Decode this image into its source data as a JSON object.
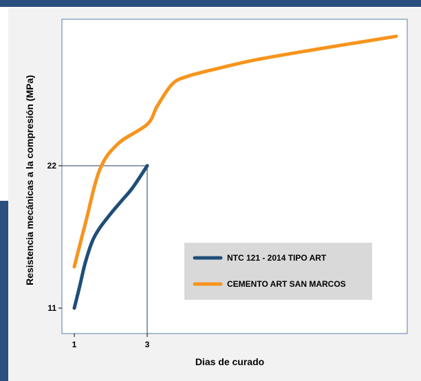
{
  "chart_data": {
    "type": "line",
    "title": "",
    "xlabel": "Dias de curado",
    "ylabel": "Resistencia mecánicas a la compresión (MPa)",
    "xlim": [
      0,
      28.5
    ],
    "ylim": [
      9.2,
      32.3
    ],
    "x_ticks": [
      1,
      3
    ],
    "y_ticks": [
      11,
      22
    ],
    "grid": false,
    "legend_position": "lower-right",
    "reference_lines": [
      {
        "x": 3,
        "y": 22
      }
    ],
    "series": [
      {
        "name": "NTC 121 - 2014 TIPO ART",
        "color": "#1f4e79",
        "x": [
          1,
          1.15,
          1.3,
          1.5,
          1.7,
          2.0,
          2.3,
          2.6,
          3.0
        ],
        "y": [
          11.0,
          12.7,
          14.5,
          16.2,
          17.2,
          18.3,
          19.3,
          20.3,
          22.0
        ]
      },
      {
        "name": "CEMENTO ART SAN MARCOS",
        "color": "#f7941d",
        "x": [
          1,
          1.3,
          1.7,
          2.2,
          3.0,
          4.0,
          5.5,
          7.0,
          10.0,
          14.0,
          20.0,
          28.0
        ],
        "y": [
          14.2,
          17.5,
          21.7,
          23.7,
          25.2,
          26.6,
          28.3,
          28.9,
          29.5,
          30.2,
          31.0,
          32.0
        ]
      }
    ]
  },
  "colors": {
    "frame_accent": "#2b4f7e",
    "panel_background": "#f2f2f2",
    "plot_background": "#ffffff",
    "legend_background": "#d9d9d9"
  }
}
